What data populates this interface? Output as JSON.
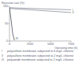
{
  "chart_data": {
    "type": "line",
    "y_label": "Rejection rate (%)",
    "x_label": "Operating time (h)",
    "xlim": [
      0,
      7500
    ],
    "xticks": [
      0,
      2500,
      5000,
      7500
    ],
    "ylim": [
      0,
      100
    ],
    "yticks": [
      0,
      50,
      100
    ],
    "series": [
      {
        "name": "I",
        "description": "polysulfone membrane subjected to 6 mg/L chlorine",
        "color": "#8a8f99",
        "x": [
          0,
          1000,
          2500,
          5000,
          7500
        ],
        "values": [
          96,
          95,
          94,
          92,
          90
        ]
      },
      {
        "name": "II",
        "description": "polysulfone membrane subjected to 2 mg/L chlorine",
        "color": "#8a8f99",
        "x": [
          0,
          1000,
          2500,
          5000,
          7500
        ],
        "values": [
          94,
          92,
          90,
          86,
          82
        ]
      },
      {
        "name": "III",
        "description": "polyamide membrane subjected to 2 mg/L chlorine",
        "color": "#4a4f5a",
        "x": [
          0,
          200,
          400,
          600
        ],
        "values": [
          96,
          60,
          20,
          2
        ]
      }
    ]
  }
}
